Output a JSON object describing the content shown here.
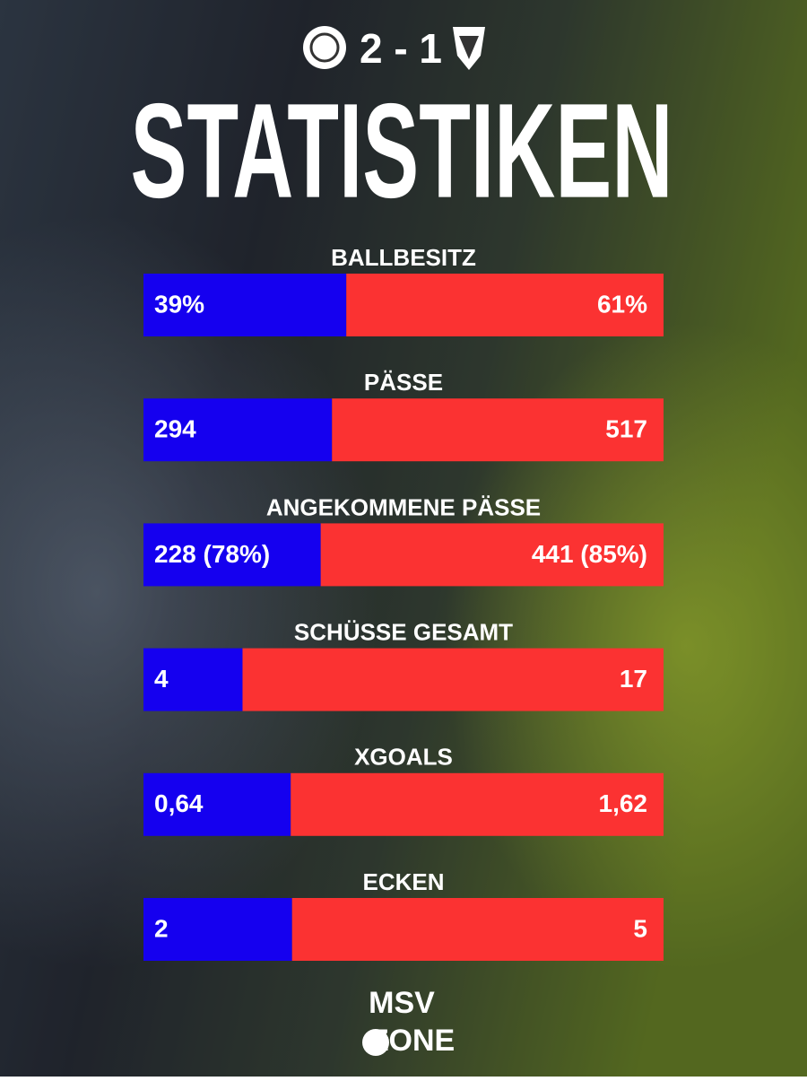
{
  "chart_data": {
    "type": "split-bar",
    "score": "2 - 1",
    "title": "STATISTIKEN",
    "categories": [
      "BALLBESITZ",
      "PÄSSE",
      "ANGEKOMMENE PÄSSE",
      "SCHÜSSE GESAMT",
      "XGOALS",
      "ECKEN"
    ],
    "series": [
      {
        "color": "#1500ef",
        "values": [
          39,
          294,
          228,
          4,
          0.64,
          2
        ],
        "value_labels": [
          "39%",
          "294",
          "228 (78%)",
          "4",
          "0,64",
          "2"
        ]
      },
      {
        "color": "#fb3232",
        "values": [
          61,
          517,
          441,
          17,
          1.62,
          5
        ],
        "value_labels": [
          "61%",
          "517",
          "441 (85%)",
          "17",
          "1,62",
          "5"
        ]
      }
    ],
    "brand": [
      "MSV",
      "ZONE"
    ]
  }
}
